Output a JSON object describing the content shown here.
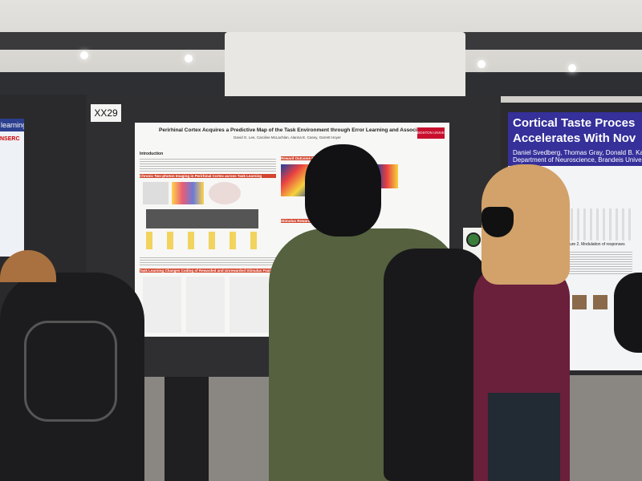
{
  "booth_label": "XX29",
  "left_poster": {
    "title_fragment": "learning",
    "logo": "NSERC"
  },
  "center_poster": {
    "title": "Perirhinal Cortex Acquires a Predictive Map of the Task Environment through Error Learning and Associative Learning",
    "authors": "David G. Lee, Caroline McLachlan, Alanna E. Casey, Garrett Hoyer",
    "institution": "BOSTON UNIVERSITY",
    "sections": [
      "Introduction",
      "Chronic Two-photon Imaging in Perirhinal Cortex across Task Learning",
      "Reward Outcome Encoding",
      "Stimulus Reward Association",
      "Task Learning Changes Coding of Rewarded and Unrewarded Stimulus Features"
    ]
  },
  "right_poster": {
    "title_lines": [
      "Cortical Taste Proces",
      "Accelerates With Nov"
    ],
    "authors": "Daniel Svedberg, Thomas Gray, Donald B. Katz",
    "affiliation": "Department of Neuroscience, Brandeis University, Walt",
    "figure_caption": "Figure 2. Modulation of responses"
  }
}
